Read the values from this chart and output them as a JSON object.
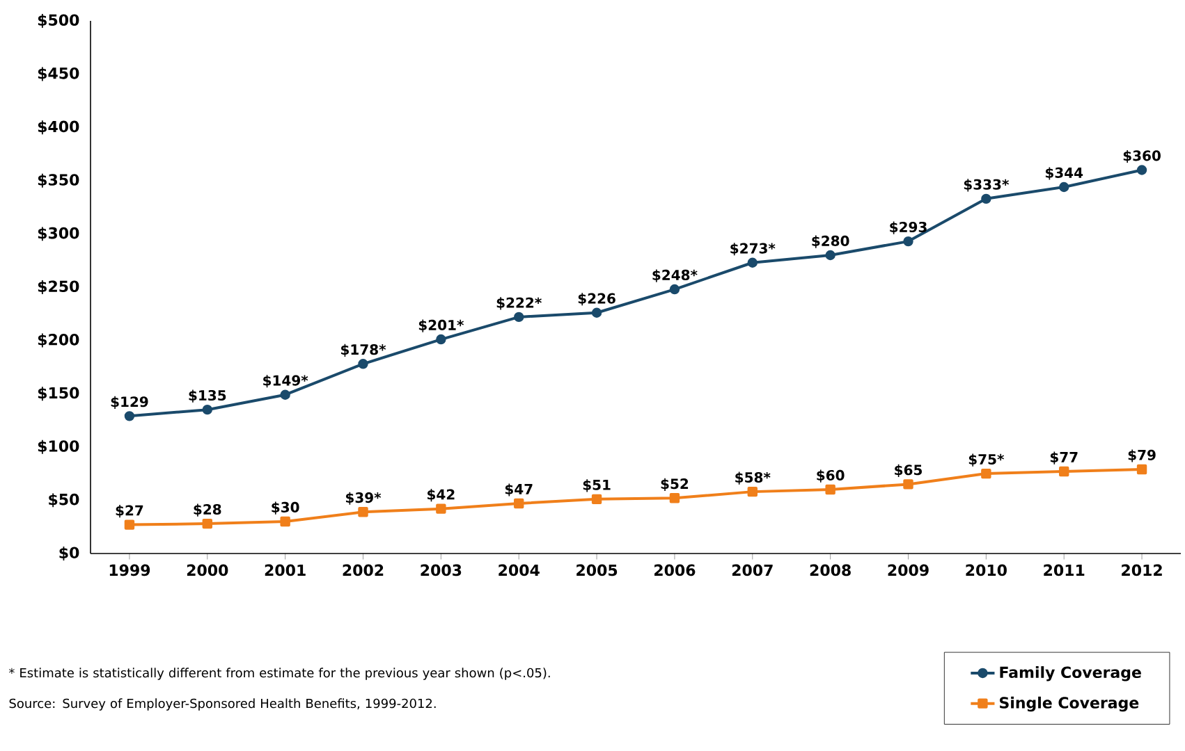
{
  "chart_data": {
    "type": "line",
    "categories": [
      "1999",
      "2000",
      "2001",
      "2002",
      "2003",
      "2004",
      "2005",
      "2006",
      "2007",
      "2008",
      "2009",
      "2010",
      "2011",
      "2012"
    ],
    "series": [
      {
        "name": "Family Coverage",
        "color": "#1a4a6b",
        "marker": "circle",
        "values": [
          129,
          135,
          149,
          178,
          201,
          222,
          226,
          248,
          273,
          280,
          293,
          333,
          344,
          360
        ],
        "value_labels": [
          "$129",
          "$135",
          "$149*",
          "$178*",
          "$201*",
          "$222*",
          "$226",
          "$248*",
          "$273*",
          "$280",
          "$293",
          "$333*",
          "$344",
          "$360"
        ]
      },
      {
        "name": "Single Coverage",
        "color": "#f07f1a",
        "marker": "square",
        "values": [
          27,
          28,
          30,
          39,
          42,
          47,
          51,
          52,
          58,
          60,
          65,
          75,
          77,
          79
        ],
        "value_labels": [
          "$27",
          "$28",
          "$30",
          "$39*",
          "$42",
          "$47",
          "$51",
          "$52",
          "$58*",
          "$60",
          "$65",
          "$75*",
          "$77",
          "$79"
        ]
      }
    ],
    "ylim": [
      0,
      500
    ],
    "yticks": [
      {
        "value": 0,
        "label": "$0"
      },
      {
        "value": 50,
        "label": "$50"
      },
      {
        "value": 100,
        "label": "$100"
      },
      {
        "value": 150,
        "label": "$150"
      },
      {
        "value": 200,
        "label": "$200"
      },
      {
        "value": 250,
        "label": "$250"
      },
      {
        "value": 300,
        "label": "$300"
      },
      {
        "value": 350,
        "label": "$350"
      },
      {
        "value": 400,
        "label": "$400"
      },
      {
        "value": 450,
        "label": "$450"
      },
      {
        "value": 500,
        "label": "$500"
      }
    ],
    "legend": "bottom right",
    "annotations": [
      "* Estimate is statistically different from estimate for the previous year shown (p<.05).",
      "Source: Survey of Employer-Sponsored Health Benefits, 1999-2012."
    ]
  }
}
